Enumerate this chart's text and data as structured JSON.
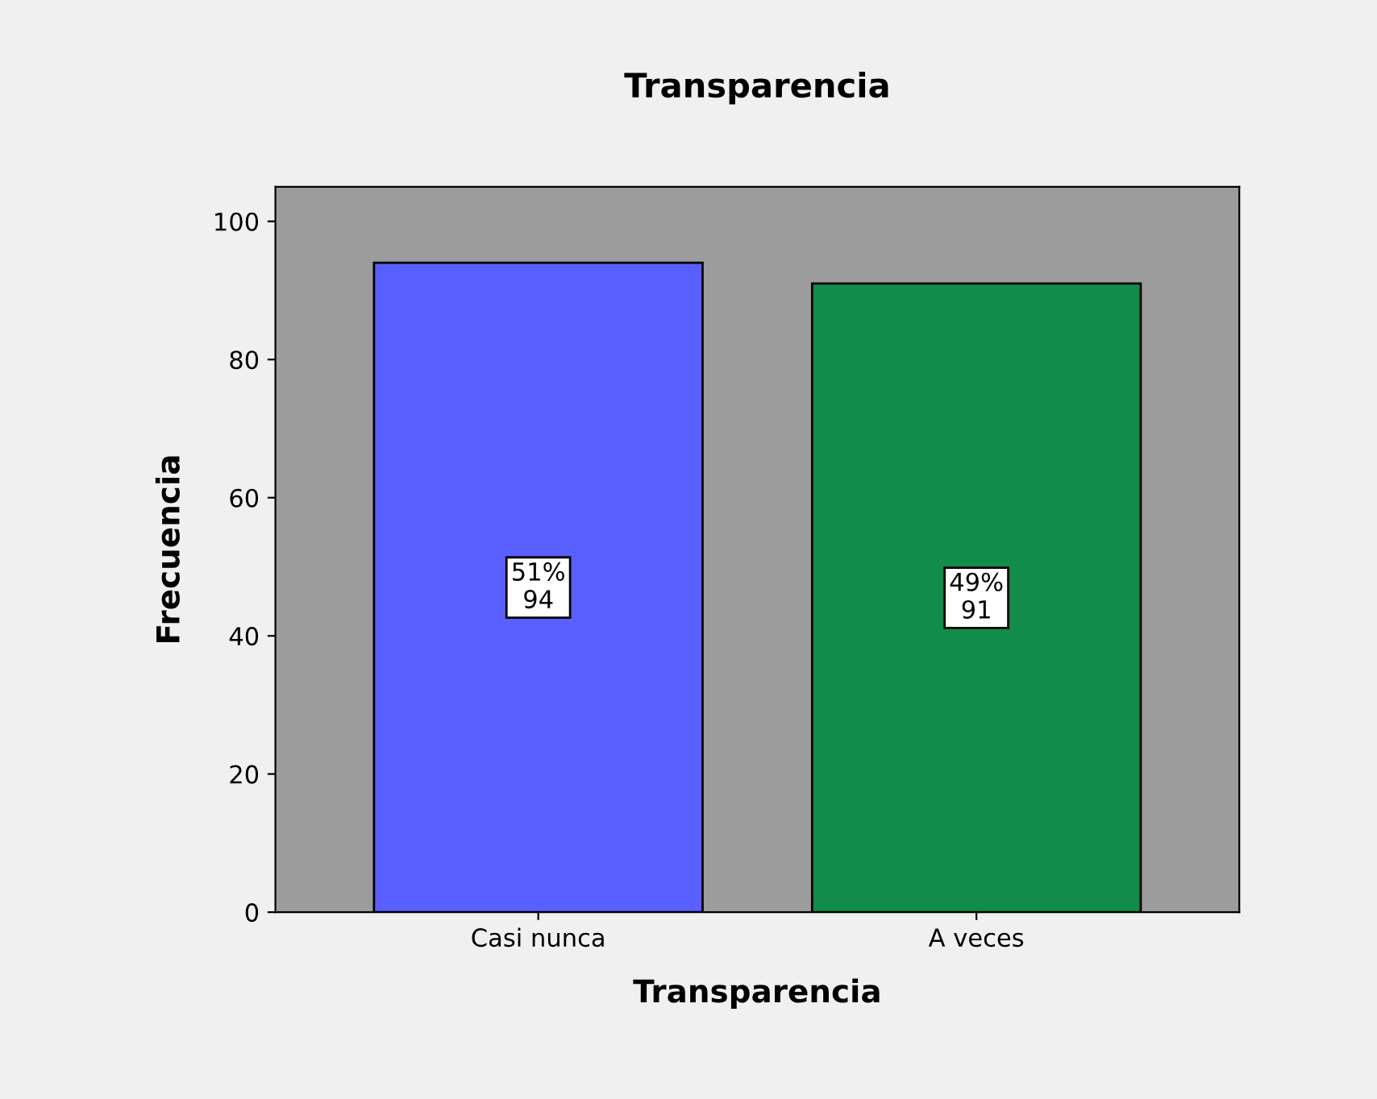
{
  "chart_data": {
    "type": "bar",
    "title": "Transparencia",
    "xlabel": "Transparencia",
    "ylabel": "Frecuencia",
    "categories": [
      "Casi nunca",
      "A veces"
    ],
    "values": [
      94,
      91
    ],
    "colors": [
      "#5a5fff",
      "#128c4a"
    ],
    "value_labels": [
      "51%\n94",
      "49%\n91"
    ],
    "ylim": [
      0,
      105
    ],
    "yticks": [
      0,
      20,
      40,
      60,
      80,
      100
    ],
    "grid": false,
    "legend": false
  }
}
